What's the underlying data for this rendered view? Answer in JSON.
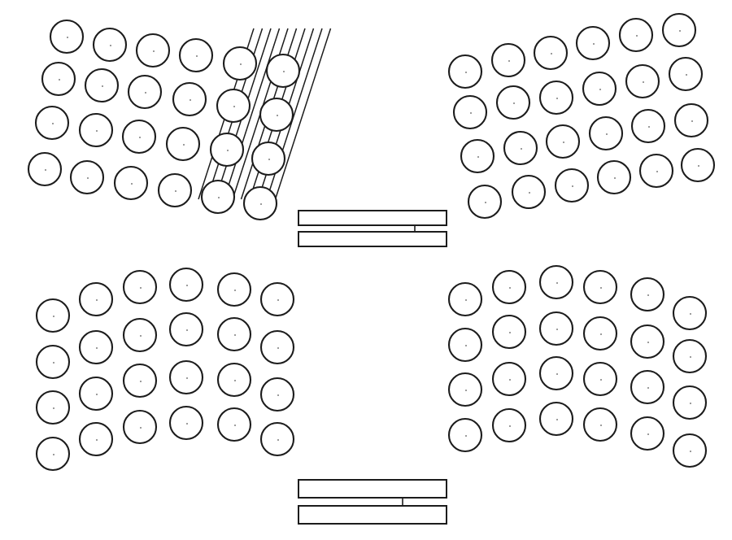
{
  "diagram": {
    "clusters": [
      {
        "id": "top-left",
        "rows": 4,
        "columns": 6,
        "hatched": true
      },
      {
        "id": "top-right",
        "rows": 4,
        "columns": 6,
        "hatched": false
      },
      {
        "id": "bottom-left",
        "rows": 4,
        "columns": 6,
        "hatched": false
      },
      {
        "id": "bottom-right",
        "rows": 4,
        "columns": 6,
        "hatched": false
      }
    ],
    "seals": [
      {
        "id": "upper-seal",
        "plates": 2
      },
      {
        "id": "lower-seal",
        "plates": 2
      }
    ]
  }
}
